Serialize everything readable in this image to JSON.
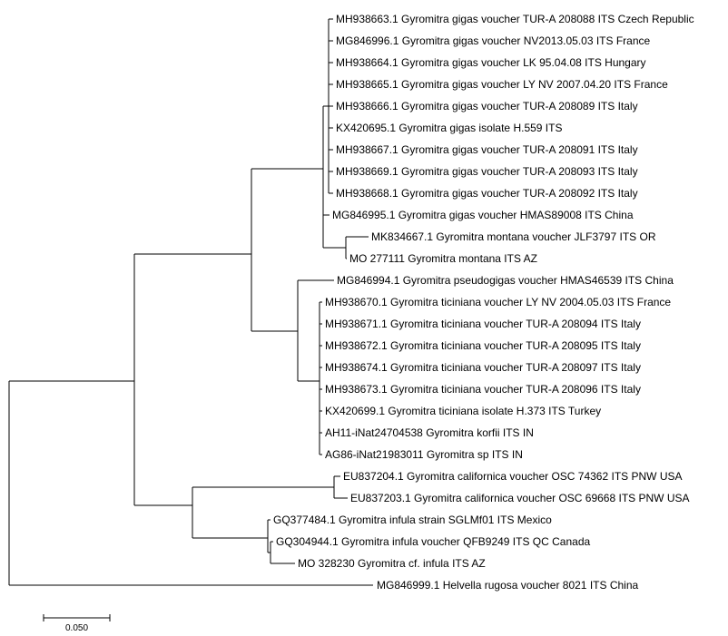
{
  "tree": {
    "leaves": [
      "MH938663.1 Gyromitra gigas voucher TUR-A 208088 ITS Czech Republic",
      "MG846996.1 Gyromitra gigas voucher NV2013.05.03 ITS France",
      "MH938664.1 Gyromitra gigas voucher LK 95.04.08 ITS Hungary",
      "MH938665.1 Gyromitra gigas voucher LY NV 2007.04.20 ITS France",
      "MH938666.1 Gyromitra gigas voucher TUR-A 208089 ITS Italy",
      "KX420695.1 Gyromitra gigas isolate H.559 ITS",
      "MH938667.1 Gyromitra gigas voucher TUR-A 208091 ITS Italy",
      "MH938669.1 Gyromitra gigas voucher TUR-A 208093 ITS Italy",
      "MH938668.1 Gyromitra gigas voucher TUR-A 208092 ITS Italy",
      "MG846995.1 Gyromitra gigas voucher HMAS89008 ITS China",
      "MK834667.1 Gyromitra montana voucher JLF3797 ITS OR",
      "MO 277111 Gyromitra montana ITS AZ",
      "MG846994.1 Gyromitra pseudogigas voucher HMAS46539 ITS China",
      "MH938670.1 Gyromitra ticiniana voucher LY NV 2004.05.03 ITS France",
      "MH938671.1 Gyromitra ticiniana voucher TUR-A 208094 ITS Italy",
      "MH938672.1 Gyromitra ticiniana voucher TUR-A 208095 ITS Italy",
      "MH938674.1 Gyromitra ticiniana voucher TUR-A 208097 ITS Italy",
      "MH938673.1 Gyromitra ticiniana voucher TUR-A 208096 ITS Italy",
      "KX420699.1 Gyromitra ticiniana isolate H.373 ITS Turkey",
      "AH11-iNat24704538 Gyromitra korfii ITS IN",
      "AG86-iNat21983011 Gyromitra sp ITS IN",
      "EU837204.1 Gyromitra californica voucher OSC 74362 ITS PNW USA",
      "EU837203.1 Gyromitra californica voucher OSC 69668 ITS PNW USA",
      "GQ377484.1 Gyromitra infula strain SGLMf01 ITS Mexico",
      "GQ304944.1 Gyromitra infula voucher QFB9249 ITS QC Canada",
      "MO 328230 Gyromitra cf. infula ITS AZ",
      "MG846999.1 Helvella rugosa voucher 8021 ITS China"
    ],
    "scale_bar_label": "0.050"
  }
}
